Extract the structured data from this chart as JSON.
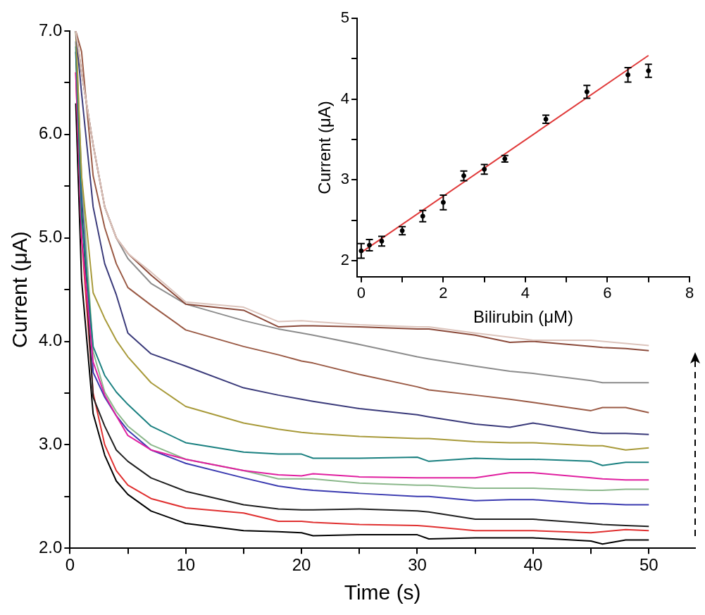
{
  "chart_data": [
    {
      "type": "line",
      "xlabel": "Time (s)",
      "ylabel": "Current (μA)",
      "marker": "none",
      "x": [
        0.5,
        1,
        2,
        3,
        4,
        5,
        7,
        10,
        15,
        18,
        20,
        21,
        25,
        30,
        31,
        35,
        38,
        40,
        45,
        46,
        48,
        50
      ],
      "xlim": [
        0,
        54
      ],
      "xticks": [
        0,
        {
          "value": 5,
          "label": null
        },
        10,
        {
          "value": 15,
          "label": null
        },
        20,
        {
          "value": 25,
          "label": null
        },
        30,
        {
          "value": 35,
          "label": null
        },
        40,
        {
          "value": 45,
          "label": null
        },
        50
      ],
      "ylim": [
        2,
        7
      ],
      "yticks": [
        {
          "value": 2,
          "label": "2.0"
        },
        {
          "value": 2.5,
          "label": null
        },
        {
          "value": 3,
          "label": "3.0"
        },
        {
          "value": 3.5,
          "label": null
        },
        {
          "value": 4,
          "label": "4.0"
        },
        {
          "value": 4.5,
          "label": null
        },
        {
          "value": 5,
          "label": "5.0"
        },
        {
          "value": 5.5,
          "label": null
        },
        {
          "value": 6,
          "label": "6.0"
        },
        {
          "value": 6.5,
          "label": null
        },
        {
          "value": 7,
          "label": "7.0"
        }
      ],
      "series": [
        {
          "color": "#dcc4bc",
          "values": [
            7.0,
            6.6,
            5.9,
            5.3,
            5.0,
            4.85,
            4.67,
            4.38,
            4.33,
            4.19,
            4.2,
            4.19,
            4.16,
            4.14,
            4.14,
            4.08,
            4.04,
            4.01,
            4.01,
            4.0,
            3.98,
            3.96
          ]
        },
        {
          "color": "#8b4a3a",
          "values": [
            7.0,
            6.6,
            5.9,
            5.3,
            5.0,
            4.85,
            4.64,
            4.36,
            4.3,
            4.14,
            4.15,
            4.15,
            4.14,
            4.12,
            4.12,
            4.06,
            3.99,
            4.0,
            3.95,
            3.94,
            3.93,
            3.91
          ]
        },
        {
          "color": "#8c8c8c",
          "values": [
            7.0,
            6.6,
            5.9,
            5.3,
            5.0,
            4.8,
            4.56,
            4.36,
            4.2,
            4.12,
            4.08,
            4.06,
            3.97,
            3.85,
            3.83,
            3.76,
            3.71,
            3.69,
            3.62,
            3.6,
            3.6,
            3.6
          ]
        },
        {
          "color": "#9a5a45",
          "values": [
            7.0,
            6.8,
            5.6,
            5.1,
            4.75,
            4.52,
            4.35,
            4.11,
            3.95,
            3.87,
            3.81,
            3.79,
            3.68,
            3.56,
            3.53,
            3.48,
            3.44,
            3.41,
            3.33,
            3.36,
            3.36,
            3.31
          ]
        },
        {
          "color": "#3a3a7a",
          "values": [
            7.0,
            6.4,
            5.3,
            4.75,
            4.45,
            4.08,
            3.88,
            3.76,
            3.55,
            3.48,
            3.44,
            3.42,
            3.35,
            3.29,
            3.27,
            3.2,
            3.17,
            3.21,
            3.12,
            3.11,
            3.11,
            3.1
          ]
        },
        {
          "color": "#a89a3a",
          "values": [
            7.0,
            5.6,
            4.47,
            4.22,
            4.01,
            3.85,
            3.6,
            3.37,
            3.21,
            3.15,
            3.12,
            3.11,
            3.08,
            3.06,
            3.06,
            3.03,
            3.02,
            3.02,
            2.99,
            2.99,
            2.95,
            2.97
          ]
        },
        {
          "color": "#1a8080",
          "values": [
            6.85,
            5.2,
            3.95,
            3.67,
            3.51,
            3.39,
            3.18,
            3.02,
            2.93,
            2.91,
            2.91,
            2.87,
            2.87,
            2.88,
            2.84,
            2.87,
            2.86,
            2.86,
            2.84,
            2.8,
            2.83,
            2.83
          ]
        },
        {
          "color": "#e020a0",
          "values": [
            6.6,
            5.0,
            3.8,
            3.48,
            3.28,
            3.09,
            2.95,
            2.86,
            2.75,
            2.71,
            2.7,
            2.72,
            2.69,
            2.68,
            2.68,
            2.68,
            2.73,
            2.73,
            2.68,
            2.67,
            2.66,
            2.66
          ]
        },
        {
          "color": "#8cb88c",
          "values": [
            7.0,
            5.6,
            3.9,
            3.51,
            3.32,
            3.18,
            3.0,
            2.86,
            2.75,
            2.67,
            2.67,
            2.67,
            2.63,
            2.61,
            2.61,
            2.58,
            2.58,
            2.58,
            2.56,
            2.56,
            2.57,
            2.57
          ]
        },
        {
          "color": "#3a3ab0",
          "values": [
            6.9,
            5.5,
            3.7,
            3.46,
            3.28,
            3.14,
            2.95,
            2.82,
            2.68,
            2.6,
            2.57,
            2.56,
            2.53,
            2.5,
            2.5,
            2.46,
            2.47,
            2.47,
            2.43,
            2.43,
            2.42,
            2.42
          ]
        },
        {
          "color": "#202020",
          "values": [
            6.8,
            5.3,
            3.46,
            3.18,
            2.95,
            2.84,
            2.68,
            2.55,
            2.42,
            2.38,
            2.37,
            2.37,
            2.38,
            2.36,
            2.35,
            2.28,
            2.28,
            2.28,
            2.24,
            2.23,
            2.22,
            2.21
          ]
        },
        {
          "color": "#e03030",
          "values": [
            6.6,
            5.0,
            3.5,
            3.0,
            2.75,
            2.61,
            2.48,
            2.39,
            2.34,
            2.26,
            2.26,
            2.25,
            2.23,
            2.22,
            2.21,
            2.17,
            2.17,
            2.17,
            2.15,
            2.16,
            2.18,
            2.17
          ]
        },
        {
          "color": "#000000",
          "values": [
            6.3,
            4.6,
            3.3,
            2.9,
            2.65,
            2.52,
            2.36,
            2.24,
            2.17,
            2.16,
            2.15,
            2.12,
            2.13,
            2.13,
            2.09,
            2.1,
            2.1,
            2.1,
            2.07,
            2.04,
            2.08,
            2.08
          ]
        }
      ]
    },
    {
      "type": "scatter",
      "xlabel": "Bilirubin (μM)",
      "ylabel": "Current (μA)",
      "marker": "circle",
      "x": [
        0,
        0.2,
        0.5,
        1,
        1.5,
        2,
        2.5,
        3,
        3.5,
        4.5,
        5.5,
        6.5,
        7
      ],
      "xlim": [
        -0.1,
        8
      ],
      "xticks": [
        0,
        {
          "value": 1,
          "label": null
        },
        2,
        {
          "value": 3,
          "label": null
        },
        4,
        {
          "value": 5,
          "label": null
        },
        6,
        {
          "value": 7,
          "label": null
        },
        8
      ],
      "ylim": [
        1.8,
        5
      ],
      "yticks": [
        2,
        {
          "value": 2.5,
          "label": null
        },
        3,
        {
          "value": 3.5,
          "label": null
        },
        4,
        {
          "value": 4.5,
          "label": null
        },
        5
      ],
      "series": [
        {
          "color": "#000000",
          "values": [
            2.12,
            2.19,
            2.24,
            2.37,
            2.55,
            2.72,
            3.05,
            3.13,
            3.26,
            3.75,
            4.09,
            4.3,
            4.35
          ],
          "errors": [
            0.09,
            0.07,
            0.06,
            0.05,
            0.07,
            0.09,
            0.06,
            0.06,
            0.04,
            0.05,
            0.08,
            0.09,
            0.08
          ]
        },
        {
          "type": "line",
          "marker": "none",
          "color": "#e03a3a",
          "x": [
            0,
            7
          ],
          "values": [
            2.1,
            4.54
          ]
        }
      ]
    }
  ]
}
